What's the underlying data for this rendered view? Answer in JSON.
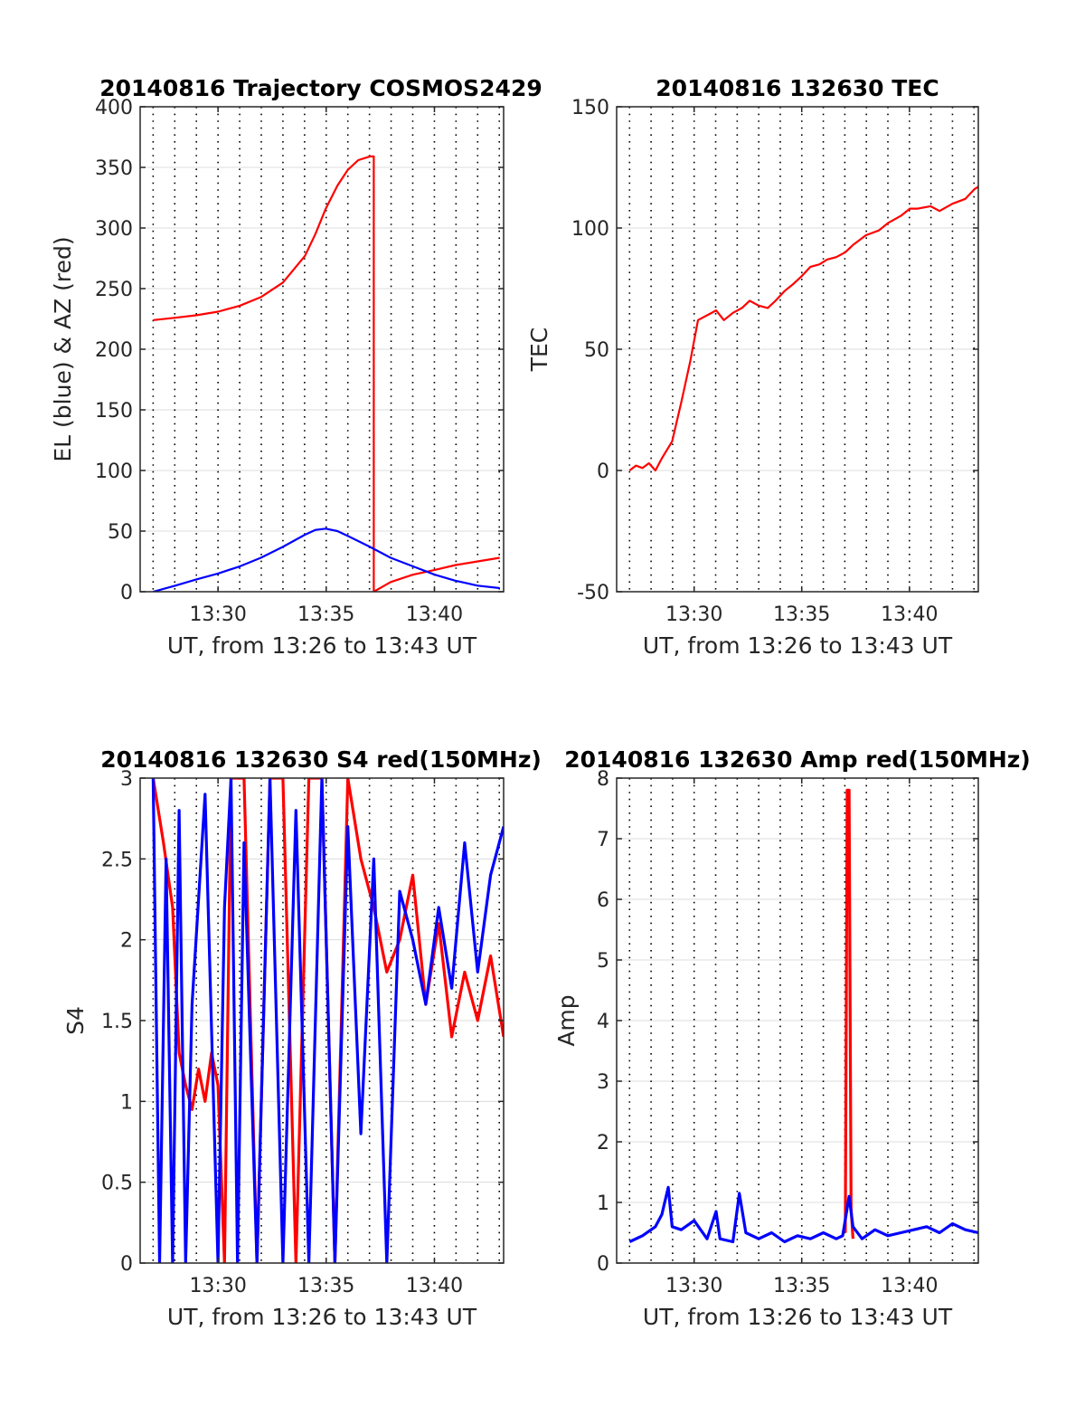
{
  "colors": {
    "red": "#ff0000",
    "blue": "#0000ff",
    "axis": "#262626",
    "grid": "#dcdcdc"
  },
  "chart_data": [
    {
      "type": "line",
      "title": "20140816 Trajectory COSMOS2429",
      "xlabel": "UT, from 13:26 to 13:43 UT",
      "ylabel": "EL (blue) & AZ (red)",
      "xlim": [
        13.44,
        13.72
      ],
      "ylim": [
        0,
        400
      ],
      "xticks": [
        13.5,
        13.5833,
        13.6667
      ],
      "xtick_labels": [
        "13:30",
        "13:35",
        "13:40"
      ],
      "yticks": [
        0,
        50,
        100,
        150,
        200,
        250,
        300,
        350,
        400
      ],
      "ytick_labels": [
        "0",
        "50",
        "100",
        "150",
        "200",
        "250",
        "300",
        "350",
        "400"
      ],
      "grid": "dotted vertical lines every minute, horizontal gridlines",
      "series": [
        {
          "color": "#ff0000",
          "x": [
            13.45,
            13.467,
            13.483,
            13.5,
            13.517,
            13.533,
            13.55,
            13.567,
            13.575,
            13.583,
            13.592,
            13.6,
            13.608,
            13.617,
            13.62,
            13.62,
            13.633,
            13.65,
            13.667,
            13.683,
            13.7,
            13.717
          ],
          "y": [
            224,
            226,
            228,
            231,
            236,
            243,
            255,
            277,
            295,
            316,
            335,
            348,
            356,
            359,
            359,
            0,
            8,
            14,
            18,
            22,
            25,
            28
          ]
        },
        {
          "color": "#0000ff",
          "x": [
            13.45,
            13.467,
            13.483,
            13.5,
            13.517,
            13.533,
            13.55,
            13.567,
            13.575,
            13.583,
            13.592,
            13.6,
            13.617,
            13.633,
            13.65,
            13.667,
            13.683,
            13.7,
            13.717
          ],
          "y": [
            0,
            5,
            10,
            15,
            21,
            28,
            37,
            47,
            51,
            52,
            50,
            46,
            37,
            28,
            21,
            14,
            9,
            5,
            3
          ]
        }
      ]
    },
    {
      "type": "line",
      "title": "20140816 132630 TEC",
      "xlabel": "UT, from 13:26 to 13:43 UT",
      "ylabel": "TEC",
      "xlim": [
        13.44,
        13.72
      ],
      "ylim": [
        -50,
        150
      ],
      "xticks": [
        13.5,
        13.5833,
        13.6667
      ],
      "xtick_labels": [
        "13:30",
        "13:35",
        "13:40"
      ],
      "yticks": [
        -50,
        0,
        50,
        100,
        150
      ],
      "ytick_labels": [
        "-50",
        "0",
        "50",
        "100",
        "150"
      ],
      "grid": "dotted vertical lines every minute, horizontal gridlines",
      "series": [
        {
          "color": "#ff0000",
          "x": [
            13.45,
            13.455,
            13.46,
            13.465,
            13.47,
            13.475,
            13.483,
            13.49,
            13.497,
            13.503,
            13.51,
            13.517,
            13.523,
            13.53,
            13.537,
            13.543,
            13.55,
            13.557,
            13.563,
            13.57,
            13.577,
            13.583,
            13.59,
            13.597,
            13.603,
            13.61,
            13.617,
            13.623,
            13.633,
            13.643,
            13.65,
            13.66,
            13.667,
            13.673,
            13.683,
            13.69,
            13.7,
            13.71,
            13.717,
            13.72
          ],
          "y": [
            0,
            2,
            1,
            3,
            0,
            5,
            12,
            28,
            45,
            62,
            64,
            66,
            62,
            65,
            67,
            70,
            68,
            67,
            70,
            74,
            77,
            80,
            84,
            85,
            87,
            88,
            90,
            93,
            97,
            99,
            102,
            105,
            108,
            108,
            109,
            107,
            110,
            112,
            116,
            117
          ]
        }
      ]
    },
    {
      "type": "line",
      "title": "20140816 132630 S4 red(150MHz)",
      "xlabel": "UT, from 13:26 to 13:43 UT",
      "ylabel": "S4",
      "xlim": [
        13.44,
        13.72
      ],
      "ylim": [
        0,
        3
      ],
      "xticks": [
        13.5,
        13.5833,
        13.6667
      ],
      "xtick_labels": [
        "13:30",
        "13:35",
        "13:40"
      ],
      "yticks": [
        0,
        0.5,
        1,
        1.5,
        2,
        2.5,
        3
      ],
      "ytick_labels": [
        "0",
        "0.5",
        "1",
        "1.5",
        "2",
        "2.5",
        "3"
      ],
      "grid": "dotted vertical lines every minute, horizontal gridlines",
      "series": [
        {
          "color": "#ff0000",
          "x": [
            13.45,
            13.458,
            13.465,
            13.47,
            13.475,
            13.48,
            13.485,
            13.49,
            13.495,
            13.5,
            13.505,
            13.51,
            13.52,
            13.53,
            13.54,
            13.55,
            13.56,
            13.57,
            13.58,
            13.59,
            13.6,
            13.61,
            13.62,
            13.63,
            13.64,
            13.65,
            13.66,
            13.67,
            13.68,
            13.69,
            13.7,
            13.71,
            13.72
          ],
          "y": [
            3,
            2.6,
            2.2,
            1.3,
            1.1,
            0.95,
            1.2,
            1.0,
            1.3,
            1.1,
            0.0,
            3,
            3,
            0.0,
            3,
            3,
            0.0,
            3,
            3,
            0.0,
            3,
            2.5,
            2.2,
            1.8,
            2.0,
            2.4,
            1.6,
            2.1,
            1.4,
            1.8,
            1.5,
            1.9,
            1.4
          ]
        },
        {
          "color": "#0000ff",
          "x": [
            13.45,
            13.455,
            13.46,
            13.465,
            13.47,
            13.475,
            13.48,
            13.49,
            13.5,
            13.505,
            13.51,
            13.515,
            13.52,
            13.53,
            13.54,
            13.55,
            13.56,
            13.57,
            13.58,
            13.59,
            13.6,
            13.61,
            13.62,
            13.63,
            13.64,
            13.65,
            13.66,
            13.67,
            13.68,
            13.69,
            13.7,
            13.71,
            13.72
          ],
          "y": [
            3,
            0,
            2.5,
            0,
            2.8,
            0,
            1.6,
            2.9,
            0,
            2.2,
            3,
            0,
            2.6,
            0,
            3,
            0,
            2.8,
            0,
            3,
            0,
            2.7,
            0.8,
            2.5,
            0,
            2.3,
            2.0,
            1.6,
            2.2,
            1.7,
            2.6,
            1.8,
            2.4,
            2.7
          ]
        }
      ]
    },
    {
      "type": "line",
      "title": "20140816 132630 Amp red(150MHz)",
      "xlabel": "UT, from 13:26 to 13:43 UT",
      "ylabel": "Amp",
      "xlim": [
        13.44,
        13.72
      ],
      "ylim": [
        0,
        8
      ],
      "xticks": [
        13.5,
        13.5833,
        13.6667
      ],
      "xtick_labels": [
        "13:30",
        "13:35",
        "13:40"
      ],
      "yticks": [
        0,
        1,
        2,
        3,
        4,
        5,
        6,
        7,
        8
      ],
      "ytick_labels": [
        "0",
        "1",
        "2",
        "3",
        "4",
        "5",
        "6",
        "7",
        "8"
      ],
      "grid": "dotted vertical lines every minute, horizontal gridlines",
      "series": [
        {
          "color": "#ff0000",
          "x": [
            13.617,
            13.6185,
            13.62,
            13.6215,
            13.623
          ],
          "y": [
            0.5,
            7.8,
            7.8,
            0.9,
            0.4
          ]
        },
        {
          "color": "#0000ff",
          "x": [
            13.45,
            13.46,
            13.47,
            13.475,
            13.48,
            13.483,
            13.49,
            13.5,
            13.51,
            13.517,
            13.52,
            13.53,
            13.535,
            13.54,
            13.55,
            13.56,
            13.57,
            13.58,
            13.59,
            13.6,
            13.61,
            13.615,
            13.62,
            13.623,
            13.63,
            13.64,
            13.65,
            13.66,
            13.67,
            13.68,
            13.69,
            13.7,
            13.71,
            13.72
          ],
          "y": [
            0.35,
            0.45,
            0.6,
            0.8,
            1.25,
            0.6,
            0.55,
            0.7,
            0.4,
            0.85,
            0.4,
            0.35,
            1.15,
            0.5,
            0.4,
            0.5,
            0.35,
            0.45,
            0.4,
            0.5,
            0.4,
            0.45,
            1.1,
            0.6,
            0.4,
            0.55,
            0.45,
            0.5,
            0.55,
            0.6,
            0.5,
            0.65,
            0.55,
            0.5
          ]
        }
      ]
    }
  ]
}
